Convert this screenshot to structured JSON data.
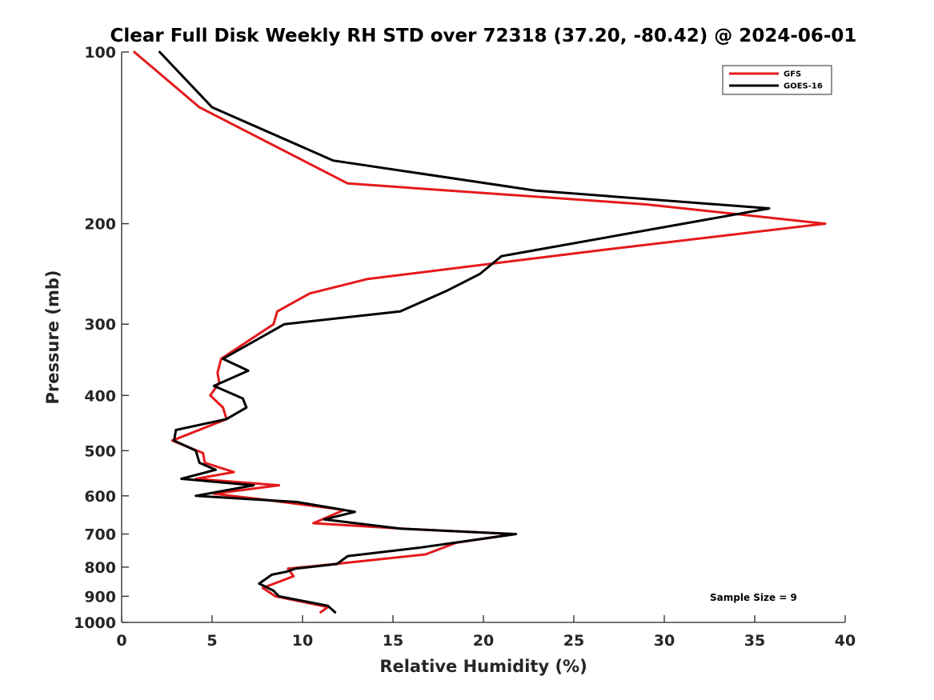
{
  "chart_data": {
    "type": "line",
    "title": "Clear Full Disk Weekly RH STD over 72318 (37.20, -80.42) @ 2024-06-01",
    "xlabel": "Relative Humidity (%)",
    "ylabel": "Pressure (mb)",
    "xlim": [
      0,
      40
    ],
    "ylim": [
      100,
      1000
    ],
    "y_scale": "log",
    "y_direction": "reverse",
    "x_ticks": [
      0,
      5,
      10,
      15,
      20,
      25,
      30,
      35,
      40
    ],
    "y_ticks": [
      100,
      200,
      300,
      400,
      500,
      600,
      700,
      800,
      900,
      1000
    ],
    "grid": false,
    "legend_position": "top-right",
    "annotation": "Sample Size = 9",
    "series": [
      {
        "name": "GFS",
        "color": "#e41a1c",
        "points": [
          [
            0.7,
            100
          ],
          [
            4.3,
            125
          ],
          [
            12.5,
            170
          ],
          [
            29.0,
            185
          ],
          [
            38.9,
            200
          ],
          [
            26.8,
            222
          ],
          [
            13.6,
            250
          ],
          [
            10.4,
            265
          ],
          [
            8.6,
            285
          ],
          [
            8.4,
            300
          ],
          [
            5.5,
            345
          ],
          [
            5.3,
            365
          ],
          [
            5.4,
            380
          ],
          [
            4.9,
            400
          ],
          [
            5.6,
            420
          ],
          [
            5.8,
            440
          ],
          [
            2.8,
            480
          ],
          [
            4.5,
            505
          ],
          [
            4.6,
            525
          ],
          [
            6.2,
            545
          ],
          [
            4.1,
            560
          ],
          [
            8.7,
            575
          ],
          [
            5.1,
            595
          ],
          [
            8.0,
            610
          ],
          [
            12.3,
            635
          ],
          [
            10.6,
            670
          ],
          [
            15.5,
            685
          ],
          [
            21.7,
            700
          ],
          [
            18.5,
            725
          ],
          [
            16.8,
            760
          ],
          [
            11.8,
            790
          ],
          [
            9.2,
            805
          ],
          [
            9.5,
            830
          ],
          [
            7.8,
            870
          ],
          [
            8.5,
            900
          ],
          [
            11.4,
            940
          ],
          [
            11.0,
            960
          ]
        ]
      },
      {
        "name": "GOES-16",
        "color": "#000000",
        "points": [
          [
            2.1,
            100
          ],
          [
            5.0,
            125
          ],
          [
            11.7,
            155
          ],
          [
            22.9,
            175
          ],
          [
            35.8,
            188
          ],
          [
            21.0,
            228
          ],
          [
            19.8,
            245
          ],
          [
            18.0,
            262
          ],
          [
            15.4,
            285
          ],
          [
            9.0,
            300
          ],
          [
            5.6,
            345
          ],
          [
            7.0,
            362
          ],
          [
            5.1,
            385
          ],
          [
            6.7,
            405
          ],
          [
            6.9,
            420
          ],
          [
            5.8,
            440
          ],
          [
            3.0,
            460
          ],
          [
            2.9,
            480
          ],
          [
            4.1,
            500
          ],
          [
            4.3,
            525
          ],
          [
            5.2,
            540
          ],
          [
            3.3,
            560
          ],
          [
            7.3,
            575
          ],
          [
            4.1,
            600
          ],
          [
            9.7,
            615
          ],
          [
            12.9,
            640
          ],
          [
            11.2,
            660
          ],
          [
            15.4,
            685
          ],
          [
            21.8,
            700
          ],
          [
            16.4,
            740
          ],
          [
            12.5,
            765
          ],
          [
            11.9,
            790
          ],
          [
            9.6,
            805
          ],
          [
            9.1,
            815
          ],
          [
            8.3,
            825
          ],
          [
            7.6,
            855
          ],
          [
            8.4,
            880
          ],
          [
            8.7,
            900
          ],
          [
            11.4,
            935
          ],
          [
            11.8,
            960
          ]
        ]
      }
    ]
  }
}
